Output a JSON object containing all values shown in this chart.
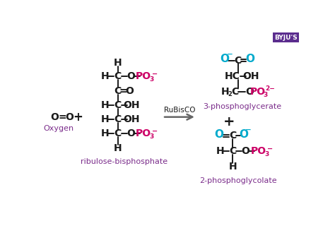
{
  "bg_color": "#ffffff",
  "black": "#1a1a1a",
  "purple": "#7b2d8b",
  "magenta": "#cc0066",
  "cyan": "#00aacc",
  "arrow_color": "#666666",
  "figsize": [
    4.74,
    3.47
  ],
  "dpi": 100,
  "ribulose_label": "ribulose-bisphosphate",
  "oxygen_label": "Oxygen",
  "rubisco_label": "RuBisCO",
  "pg3_label": "3-phosphoglycerate",
  "pg2_label": "2-phosphoglycolate"
}
